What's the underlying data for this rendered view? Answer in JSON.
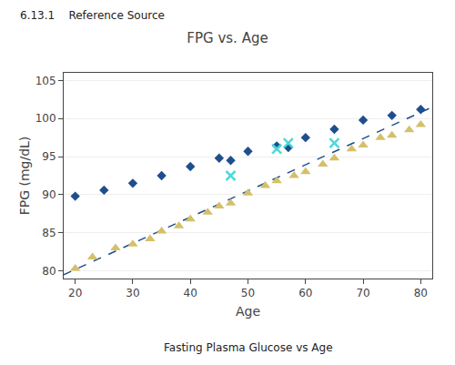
{
  "chart_data": {
    "type": "scatter",
    "title": "FPG vs. Age",
    "x_label": "Age",
    "y_label": "FPG (mg/dL)",
    "annotations": [
      "6.13.1    Reference Source",
      "Fasting Plasma Glucose vs Age"
    ],
    "xlim": [
      18,
      82
    ],
    "ylim": [
      79,
      106
    ],
    "xticks": [
      20,
      30,
      40,
      50,
      60,
      70,
      80
    ],
    "yticks": [
      80,
      85,
      90,
      95,
      100,
      105
    ],
    "grid": "y",
    "series": [
      {
        "type": "line",
        "line_style": "dashed",
        "color": "#1F4E8C",
        "x": [
          18,
          82
        ],
        "values": [
          79.5,
          101.5
        ]
      },
      {
        "type": "scatter",
        "marker": "triangle",
        "color": "#D4C06A",
        "x": [
          20,
          23,
          27,
          30,
          33,
          35,
          38,
          40,
          43,
          45,
          47,
          50,
          53,
          55,
          58,
          60,
          63,
          65,
          68,
          70,
          73,
          75,
          78,
          80
        ],
        "values": [
          80.3,
          81.8,
          83.0,
          83.5,
          84.2,
          85.2,
          85.9,
          86.8,
          87.7,
          88.5,
          88.9,
          90.2,
          91.2,
          91.8,
          92.5,
          93.0,
          94.0,
          94.8,
          96.0,
          96.5,
          97.5,
          97.8,
          98.5,
          99.2
        ]
      },
      {
        "type": "scatter",
        "marker": "diamond",
        "color": "#1F4E8C",
        "x": [
          20,
          25,
          30,
          35,
          40,
          45,
          47,
          50,
          55,
          57,
          60,
          65,
          70,
          75,
          80
        ],
        "values": [
          89.8,
          90.6,
          91.5,
          92.5,
          93.7,
          94.8,
          94.5,
          95.7,
          96.4,
          96.2,
          97.5,
          98.6,
          99.8,
          100.4,
          101.2
        ]
      },
      {
        "type": "scatter",
        "marker": "x",
        "color": "#4DD9D9",
        "x": [
          47,
          55,
          57,
          65
        ],
        "values": [
          92.5,
          96.0,
          96.8,
          96.8
        ]
      }
    ]
  }
}
